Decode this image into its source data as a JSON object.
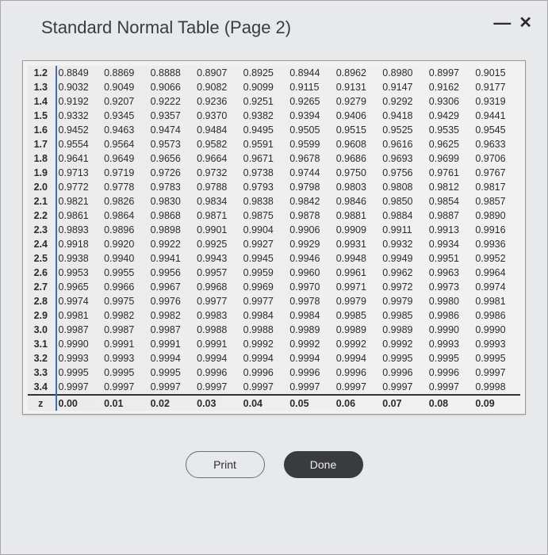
{
  "window": {
    "title": "Standard Normal Table (Page 2)"
  },
  "buttons": {
    "print": "Print",
    "done": "Done"
  },
  "table": {
    "type": "table",
    "row_label": "z",
    "column_headers": [
      "0.00",
      "0.01",
      "0.02",
      "0.03",
      "0.04",
      "0.05",
      "0.06",
      "0.07",
      "0.08",
      "0.09"
    ],
    "row_headers": [
      "1.2",
      "1.3",
      "1.4",
      "1.5",
      "1.6",
      "1.7",
      "1.8",
      "1.9",
      "2.0",
      "2.1",
      "2.2",
      "2.3",
      "2.4",
      "2.5",
      "2.6",
      "2.7",
      "2.8",
      "2.9",
      "3.0",
      "3.1",
      "3.2",
      "3.3",
      "3.4"
    ],
    "rows": [
      [
        "0.8849",
        "0.8869",
        "0.8888",
        "0.8907",
        "0.8925",
        "0.8944",
        "0.8962",
        "0.8980",
        "0.8997",
        "0.9015"
      ],
      [
        "0.9032",
        "0.9049",
        "0.9066",
        "0.9082",
        "0.9099",
        "0.9115",
        "0.9131",
        "0.9147",
        "0.9162",
        "0.9177"
      ],
      [
        "0.9192",
        "0.9207",
        "0.9222",
        "0.9236",
        "0.9251",
        "0.9265",
        "0.9279",
        "0.9292",
        "0.9306",
        "0.9319"
      ],
      [
        "0.9332",
        "0.9345",
        "0.9357",
        "0.9370",
        "0.9382",
        "0.9394",
        "0.9406",
        "0.9418",
        "0.9429",
        "0.9441"
      ],
      [
        "0.9452",
        "0.9463",
        "0.9474",
        "0.9484",
        "0.9495",
        "0.9505",
        "0.9515",
        "0.9525",
        "0.9535",
        "0.9545"
      ],
      [
        "0.9554",
        "0.9564",
        "0.9573",
        "0.9582",
        "0.9591",
        "0.9599",
        "0.9608",
        "0.9616",
        "0.9625",
        "0.9633"
      ],
      [
        "0.9641",
        "0.9649",
        "0.9656",
        "0.9664",
        "0.9671",
        "0.9678",
        "0.9686",
        "0.9693",
        "0.9699",
        "0.9706"
      ],
      [
        "0.9713",
        "0.9719",
        "0.9726",
        "0.9732",
        "0.9738",
        "0.9744",
        "0.9750",
        "0.9756",
        "0.9761",
        "0.9767"
      ],
      [
        "0.9772",
        "0.9778",
        "0.9783",
        "0.9788",
        "0.9793",
        "0.9798",
        "0.9803",
        "0.9808",
        "0.9812",
        "0.9817"
      ],
      [
        "0.9821",
        "0.9826",
        "0.9830",
        "0.9834",
        "0.9838",
        "0.9842",
        "0.9846",
        "0.9850",
        "0.9854",
        "0.9857"
      ],
      [
        "0.9861",
        "0.9864",
        "0.9868",
        "0.9871",
        "0.9875",
        "0.9878",
        "0.9881",
        "0.9884",
        "0.9887",
        "0.9890"
      ],
      [
        "0.9893",
        "0.9896",
        "0.9898",
        "0.9901",
        "0.9904",
        "0.9906",
        "0.9909",
        "0.9911",
        "0.9913",
        "0.9916"
      ],
      [
        "0.9918",
        "0.9920",
        "0.9922",
        "0.9925",
        "0.9927",
        "0.9929",
        "0.9931",
        "0.9932",
        "0.9934",
        "0.9936"
      ],
      [
        "0.9938",
        "0.9940",
        "0.9941",
        "0.9943",
        "0.9945",
        "0.9946",
        "0.9948",
        "0.9949",
        "0.9951",
        "0.9952"
      ],
      [
        "0.9953",
        "0.9955",
        "0.9956",
        "0.9957",
        "0.9959",
        "0.9960",
        "0.9961",
        "0.9962",
        "0.9963",
        "0.9964"
      ],
      [
        "0.9965",
        "0.9966",
        "0.9967",
        "0.9968",
        "0.9969",
        "0.9970",
        "0.9971",
        "0.9972",
        "0.9973",
        "0.9974"
      ],
      [
        "0.9974",
        "0.9975",
        "0.9976",
        "0.9977",
        "0.9977",
        "0.9978",
        "0.9979",
        "0.9979",
        "0.9980",
        "0.9981"
      ],
      [
        "0.9981",
        "0.9982",
        "0.9982",
        "0.9983",
        "0.9984",
        "0.9984",
        "0.9985",
        "0.9985",
        "0.9986",
        "0.9986"
      ],
      [
        "0.9987",
        "0.9987",
        "0.9987",
        "0.9988",
        "0.9988",
        "0.9989",
        "0.9989",
        "0.9989",
        "0.9990",
        "0.9990"
      ],
      [
        "0.9990",
        "0.9991",
        "0.9991",
        "0.9991",
        "0.9992",
        "0.9992",
        "0.9992",
        "0.9992",
        "0.9993",
        "0.9993"
      ],
      [
        "0.9993",
        "0.9993",
        "0.9994",
        "0.9994",
        "0.9994",
        "0.9994",
        "0.9994",
        "0.9995",
        "0.9995",
        "0.9995"
      ],
      [
        "0.9995",
        "0.9995",
        "0.9995",
        "0.9996",
        "0.9996",
        "0.9996",
        "0.9996",
        "0.9996",
        "0.9996",
        "0.9997"
      ],
      [
        "0.9997",
        "0.9997",
        "0.9997",
        "0.9997",
        "0.9997",
        "0.9997",
        "0.9997",
        "0.9997",
        "0.9997",
        "0.9998"
      ]
    ],
    "styling": {
      "header_border_color": "#3f6fb0",
      "footer_border_color": "#333333",
      "cell_font_size_pt": 9,
      "header_font_weight": 700,
      "background_color": "#f2f2f3",
      "outer_border_color": "#9a9a9e",
      "text_color": "#2c2c2e"
    }
  },
  "colors": {
    "dialog_bg": "#e8e9eb",
    "page_bg": "#bdbfc4",
    "btn_solid_bg": "#3a3b3e",
    "btn_solid_fg": "#f0f0f0",
    "btn_outline_border": "#6b6b6f"
  }
}
